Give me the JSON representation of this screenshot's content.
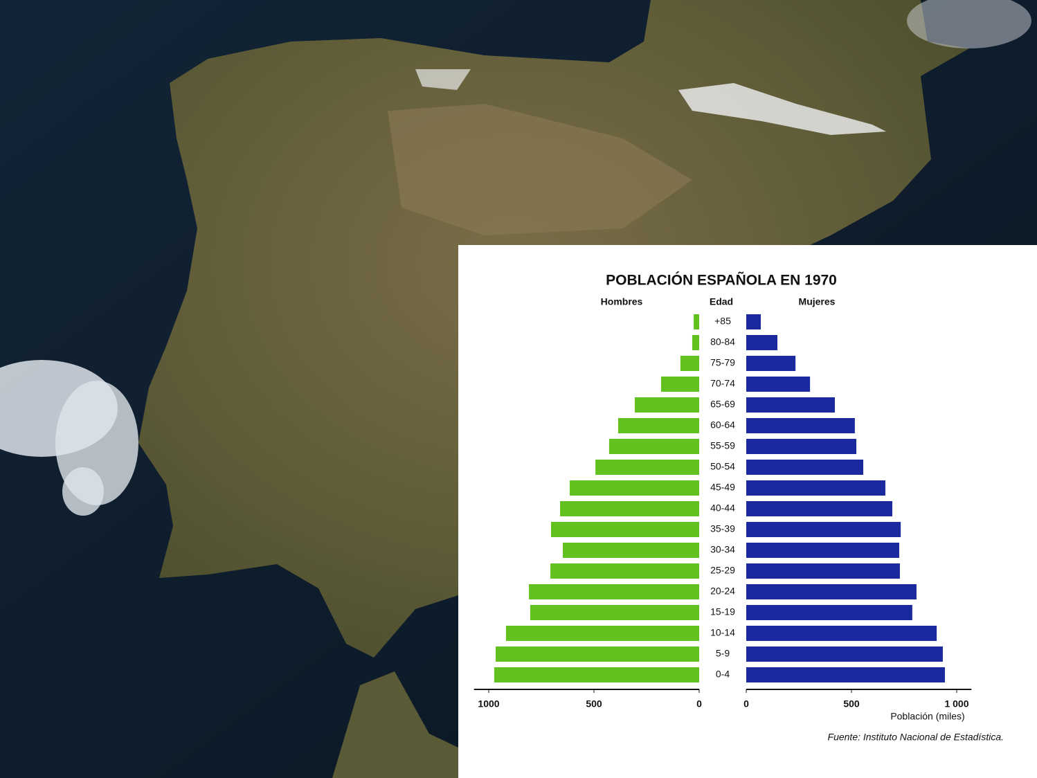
{
  "chart_data": {
    "type": "pyramid",
    "title": "POBLACIÓN ESPAÑOLA EN 1970",
    "category_label": "Edad",
    "x_label": "Población (miles)",
    "source": "Fuente: Instituto Nacional de Estadística.",
    "categories": [
      "+85",
      "80-84",
      "75-79",
      "70-74",
      "65-69",
      "60-64",
      "55-59",
      "50-54",
      "45-49",
      "40-44",
      "35-39",
      "30-34",
      "25-29",
      "20-24",
      "15-19",
      "10-14",
      "5-9",
      "0-4"
    ],
    "series": [
      {
        "name": "Hombres",
        "color": "#62c11f",
        "values": [
          26,
          33,
          89,
          181,
          306,
          385,
          428,
          493,
          615,
          661,
          704,
          648,
          707,
          809,
          803,
          918,
          967,
          974
        ]
      },
      {
        "name": "Mujeres",
        "color": "#1a2a9e",
        "values": [
          69,
          148,
          234,
          303,
          421,
          516,
          523,
          556,
          661,
          694,
          734,
          727,
          730,
          809,
          789,
          905,
          934,
          944
        ]
      }
    ],
    "xlim": [
      0,
      1070
    ],
    "xticks_left": [
      1000,
      500,
      0
    ],
    "xticks": [
      0,
      500,
      {
        "value": 1000,
        "label": "1 000"
      }
    ]
  }
}
